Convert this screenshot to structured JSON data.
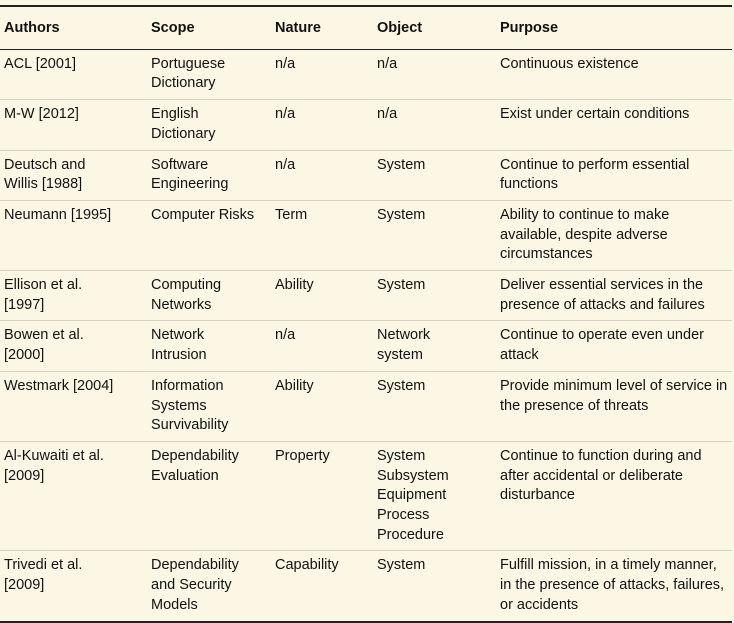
{
  "table": {
    "header": [
      "Authors",
      "Scope",
      "Nature",
      "Object",
      "Purpose"
    ],
    "rows": [
      [
        "ACL [2001]",
        "Portuguese Dictionary",
        "n/a",
        "n/a",
        "Continuous existence"
      ],
      [
        "M-W [2012]",
        "English Dictionary",
        "n/a",
        "n/a",
        "Exist under certain conditions"
      ],
      [
        "Deutsch and Willis [1988]",
        "Software Engineering",
        "n/a",
        "System",
        "Continue to perform essential functions"
      ],
      [
        "Neumann [1995]",
        "Computer Risks",
        "Term",
        "System",
        "Ability to continue to make available, despite adverse circumstances"
      ],
      [
        "Ellison et al. [1997]",
        "Computing Networks",
        "Ability",
        "System",
        "Deliver essential services in the presence of attacks and failures"
      ],
      [
        "Bowen et al. [2000]",
        "Network Intrusion",
        "n/a",
        "Network system",
        "Continue to operate even under attack"
      ],
      [
        "Westmark [2004]",
        "Information Systems Survivability",
        "Ability",
        "System",
        "Provide minimum level of service in the presence of threats"
      ],
      [
        "Al-Kuwaiti et al. [2009]",
        "Dependability Evaluation",
        "Property",
        "System\nSubsystem\nEquipment\nProcess\nProcedure",
        "Continue to function during and after accidental or deliberate disturbance"
      ],
      [
        "Trivedi et al. [2009]",
        "Dependability and Security Models",
        "Capability",
        "System",
        "Fulfill mission, in a timely manner, in the presence of attacks, failures, or accidents"
      ]
    ]
  }
}
